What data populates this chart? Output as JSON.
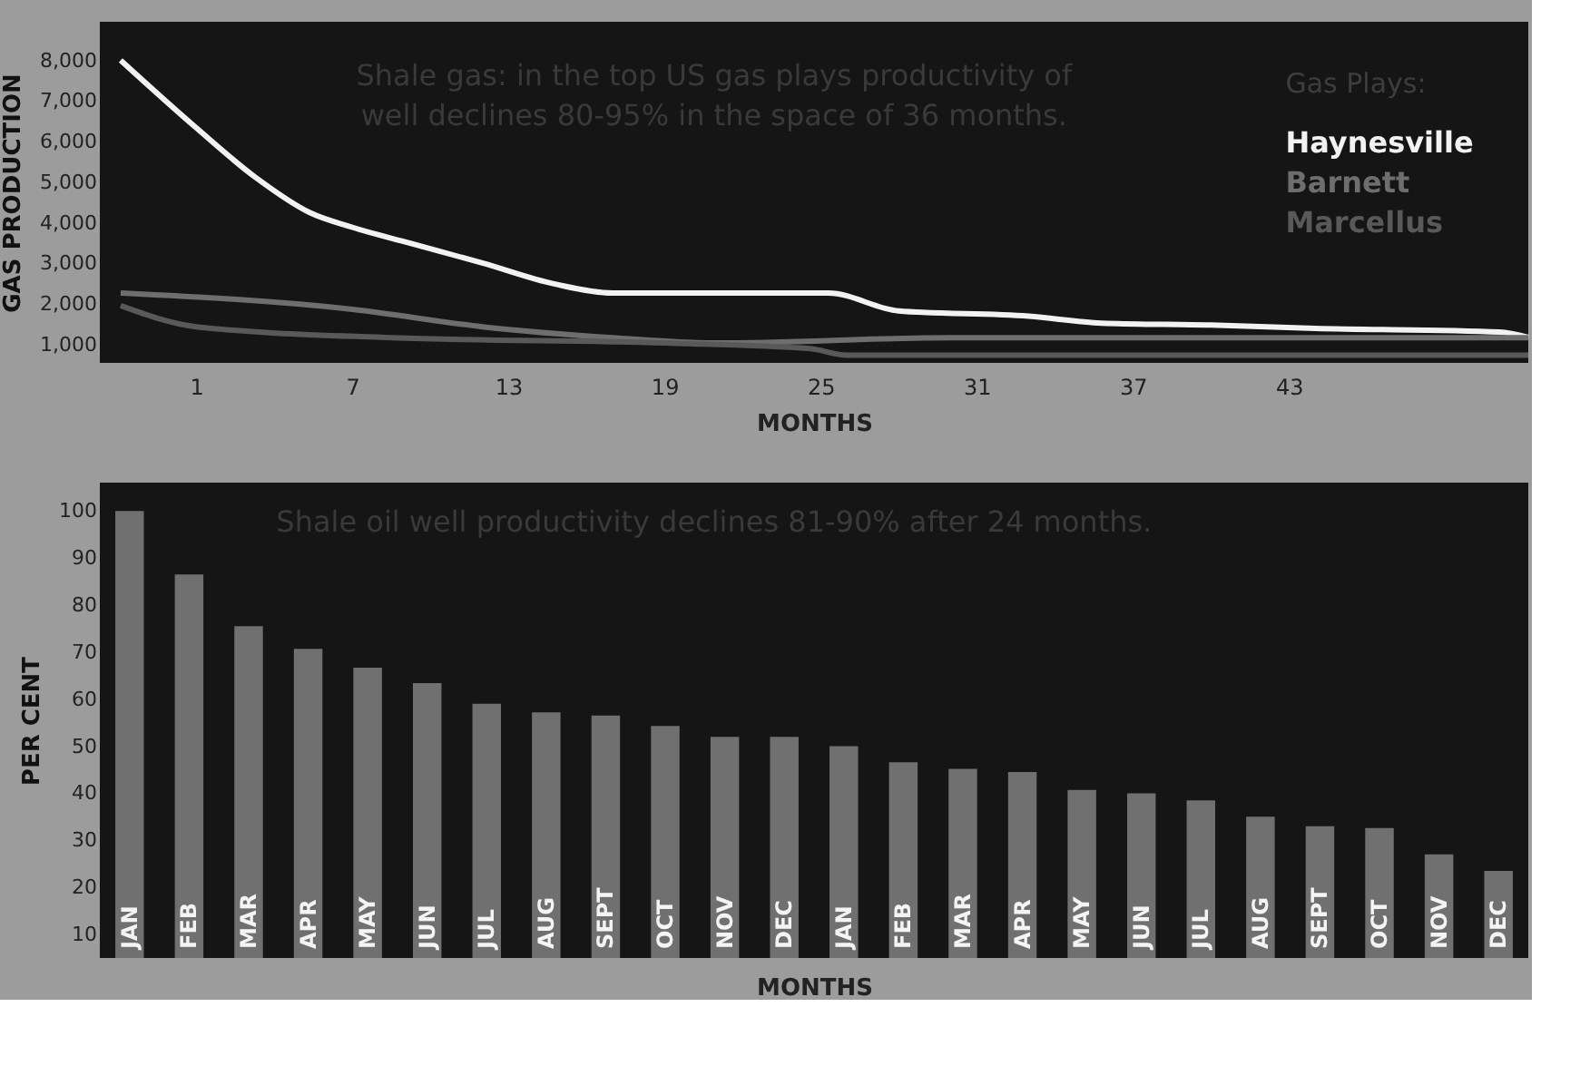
{
  "chart_data": [
    {
      "type": "line",
      "xlabel": "MONTHS",
      "ylabel": "GAS PRODUCTION",
      "legend_title": "Gas Plays:",
      "legend": "top right",
      "grid": false,
      "marker": "none",
      "line_style": "solid",
      "annotations": [
        "Shale gas: in the top US gas plays productivity of\nwell declines 80-95% in the space of 36 months."
      ],
      "xlim": [
        -2.7,
        52.2
      ],
      "xticks": [
        1,
        7,
        13,
        19,
        25,
        31,
        37,
        43
      ],
      "ylim": [
        550,
        8950
      ],
      "yticks": [
        {
          "value": 1000,
          "label": "1,000"
        },
        {
          "value": 2000,
          "label": "2,000"
        },
        {
          "value": 3000,
          "label": "3,000"
        },
        {
          "value": 4000,
          "label": "4,000"
        },
        {
          "value": 5000,
          "label": "5,000"
        },
        {
          "value": 6000,
          "label": "6,000"
        },
        {
          "value": 7000,
          "label": "7,000"
        },
        {
          "value": 8000,
          "label": "8,000"
        }
      ],
      "series": [
        {
          "name": "Haynesville",
          "color": "#f2f2f2",
          "x": [
            -1.9,
            1,
            3.3,
            5.4,
            7,
            9.2,
            12,
            14.8,
            17,
            20.4,
            25.3,
            28,
            33,
            35.8,
            40,
            44,
            51.1,
            52.2
          ],
          "values": [
            8000,
            6340,
            5110,
            4240,
            3890,
            3500,
            3010,
            2490,
            2270,
            2270,
            2270,
            1830,
            1700,
            1530,
            1480,
            1400,
            1310,
            1180
          ]
        },
        {
          "name": "Barnett",
          "color": "#6e6e6e",
          "x": [
            -1.9,
            7,
            12,
            17,
            21,
            30,
            40,
            52.2
          ],
          "values": [
            2270,
            1870,
            1440,
            1170,
            1040,
            1170,
            1170,
            1170
          ]
        },
        {
          "name": "Marcellus",
          "color": "#595959",
          "x": [
            -1.9,
            1,
            8.5,
            19,
            24.6,
            26,
            40,
            52.2
          ],
          "values": [
            1960,
            1440,
            1170,
            1040,
            900,
            740,
            740,
            740
          ]
        }
      ]
    },
    {
      "type": "bar",
      "xlabel": "MONTHS",
      "ylabel": "PER CENT",
      "grid": false,
      "annotations": [
        "Shale oil well productivity declines 81-90% after 24 months."
      ],
      "categories": [
        "JAN",
        "FEB",
        "MAR",
        "APR",
        "MAY",
        "JUN",
        "JUL",
        "AUG",
        "SEPT",
        "OCT",
        "NOV",
        "DEC",
        "JAN",
        "FEB",
        "MAR",
        "APR",
        "MAY",
        "JUN",
        "JUL",
        "AUG",
        "SEPT",
        "OCT",
        "NOV",
        "DEC"
      ],
      "values": [
        100,
        86.5,
        75.5,
        70.7,
        66.7,
        63.4,
        59,
        57.2,
        56.5,
        54.3,
        52,
        52,
        50,
        46.6,
        45.2,
        44.5,
        40.7,
        40,
        38.5,
        35,
        33,
        32.6,
        27,
        23.5
      ],
      "color": "#707070",
      "ylim": [
        5,
        106
      ],
      "yticks": [
        10,
        20,
        30,
        40,
        50,
        60,
        70,
        80,
        90,
        100
      ]
    }
  ]
}
